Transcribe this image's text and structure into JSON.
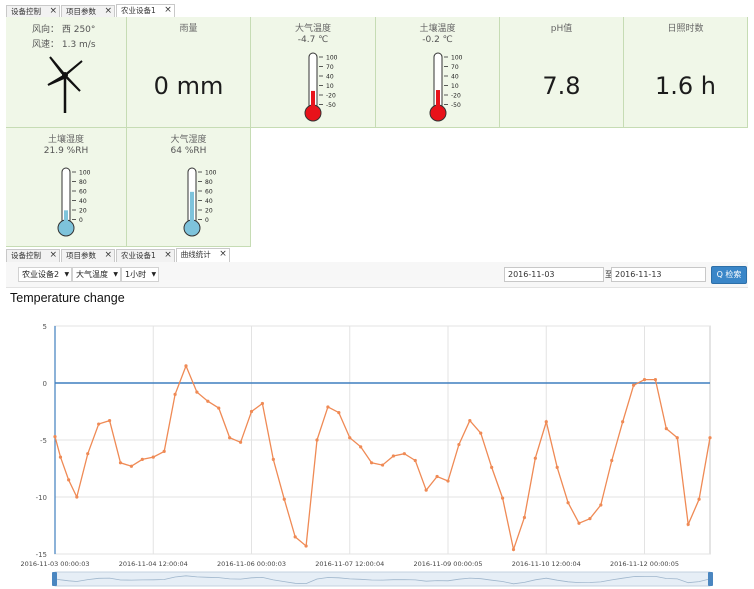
{
  "tabs_top": [
    {
      "label": "设备控制",
      "active": false
    },
    {
      "label": "项目参数",
      "active": false
    },
    {
      "label": "农业设备1",
      "active": true
    }
  ],
  "tabs_mid": [
    {
      "label": "设备控制",
      "active": false
    },
    {
      "label": "项目参数",
      "active": false
    },
    {
      "label": "农业设备1",
      "active": false
    },
    {
      "label": "曲线统计",
      "active": true
    }
  ],
  "cards": {
    "wind": {
      "direction": "风向： 西 250°",
      "speed": "风速： 1.3 m/s"
    },
    "rain": {
      "title": "雨量",
      "value": "0 mm"
    },
    "air_temp": {
      "title": "大气温度",
      "value": "-4.7 ℃",
      "level": 0.32
    },
    "soil_temp": {
      "title": "土壤温度",
      "value": "-0.2 ℃",
      "level": 0.34
    },
    "ph": {
      "title": "pH值",
      "value": "7.8"
    },
    "sunshine": {
      "title": "日照时数",
      "value": "1.6 h"
    },
    "soil_humidity": {
      "title": "土壤湿度",
      "value": "21.9 %RH",
      "level": 0.22
    },
    "air_humidity": {
      "title": "大气湿度",
      "value": "64 %RH",
      "level": 0.64
    }
  },
  "therm_scale_temp": [
    "100",
    "70",
    "40",
    "10",
    "-20",
    "-50"
  ],
  "therm_scale_hum": [
    "100",
    "80",
    "60",
    "40",
    "20",
    "0"
  ],
  "colors": {
    "thermo_red": "#e8121a",
    "thermo_blue": "#7ec3db",
    "line": "#ef8a55",
    "zero_line": "#3f7fbf",
    "card_bg": "#f0f7e8"
  },
  "toolbar": {
    "device": "农业设备2",
    "metric": "大气温度",
    "interval": "1小时",
    "date_from": "2016-11-03",
    "to_label": "至",
    "date_to": "2016-11-13",
    "search_label": "Q 检索"
  },
  "chart_title": "Temperature change",
  "chart_data": {
    "type": "line",
    "title": "Temperature change",
    "ylim": [
      -15,
      5
    ],
    "yticks": [
      "5",
      "0",
      "-5",
      "-10",
      "-15"
    ],
    "xticks": [
      "2016-11-03 00:00:03",
      "2016-11-04 12:00:04",
      "2016-11-06 00:00:03",
      "2016-11-07 12:00:04",
      "2016-11-09 00:00:05",
      "2016-11-10 12:00:04",
      "2016-11-12 00:00:05"
    ],
    "xrange": [
      "2016-11-03 00:00",
      "2016-11-13 00:00"
    ],
    "x_hours": [
      0,
      2,
      5,
      8,
      12,
      16,
      20,
      24,
      28,
      32,
      36,
      40,
      44,
      48,
      52,
      56,
      60,
      64,
      68,
      72,
      76,
      80,
      84,
      88,
      92,
      96,
      100,
      104,
      108,
      112,
      116,
      120,
      124,
      128,
      132,
      136,
      140,
      144,
      148,
      152,
      156,
      160,
      164,
      168,
      172,
      176,
      180,
      184,
      188,
      192,
      196,
      200,
      204,
      208,
      212,
      216,
      220,
      224,
      228,
      232,
      236,
      240
    ],
    "values": [
      -4.7,
      -6.5,
      -8.5,
      -10,
      -6.2,
      -3.6,
      -3.3,
      -7,
      -7.3,
      -6.7,
      -6.5,
      -6,
      -1,
      1.5,
      -0.8,
      -1.6,
      -2.2,
      -4.8,
      -5.2,
      -2.5,
      -1.8,
      -6.7,
      -10.2,
      -13.5,
      -14.3,
      -5,
      -2.1,
      -2.6,
      -4.8,
      -5.6,
      -7,
      -7.2,
      -6.4,
      -6.2,
      -6.8,
      -9.4,
      -8.2,
      -8.6,
      -5.4,
      -3.3,
      -4.4,
      -7.4,
      -10.1,
      -14.6,
      -11.8,
      -6.6,
      -3.4,
      -7.4,
      -10.5,
      -12.3,
      -11.9,
      -10.7,
      -6.8,
      -3.4,
      -0.2,
      0.3,
      0.3,
      -4,
      -4.8,
      -12.4,
      -10.2,
      -4.8
    ],
    "series": [
      {
        "name": "",
        "color": "#ef8a55"
      }
    ],
    "zero_line": 0,
    "grid": true
  }
}
